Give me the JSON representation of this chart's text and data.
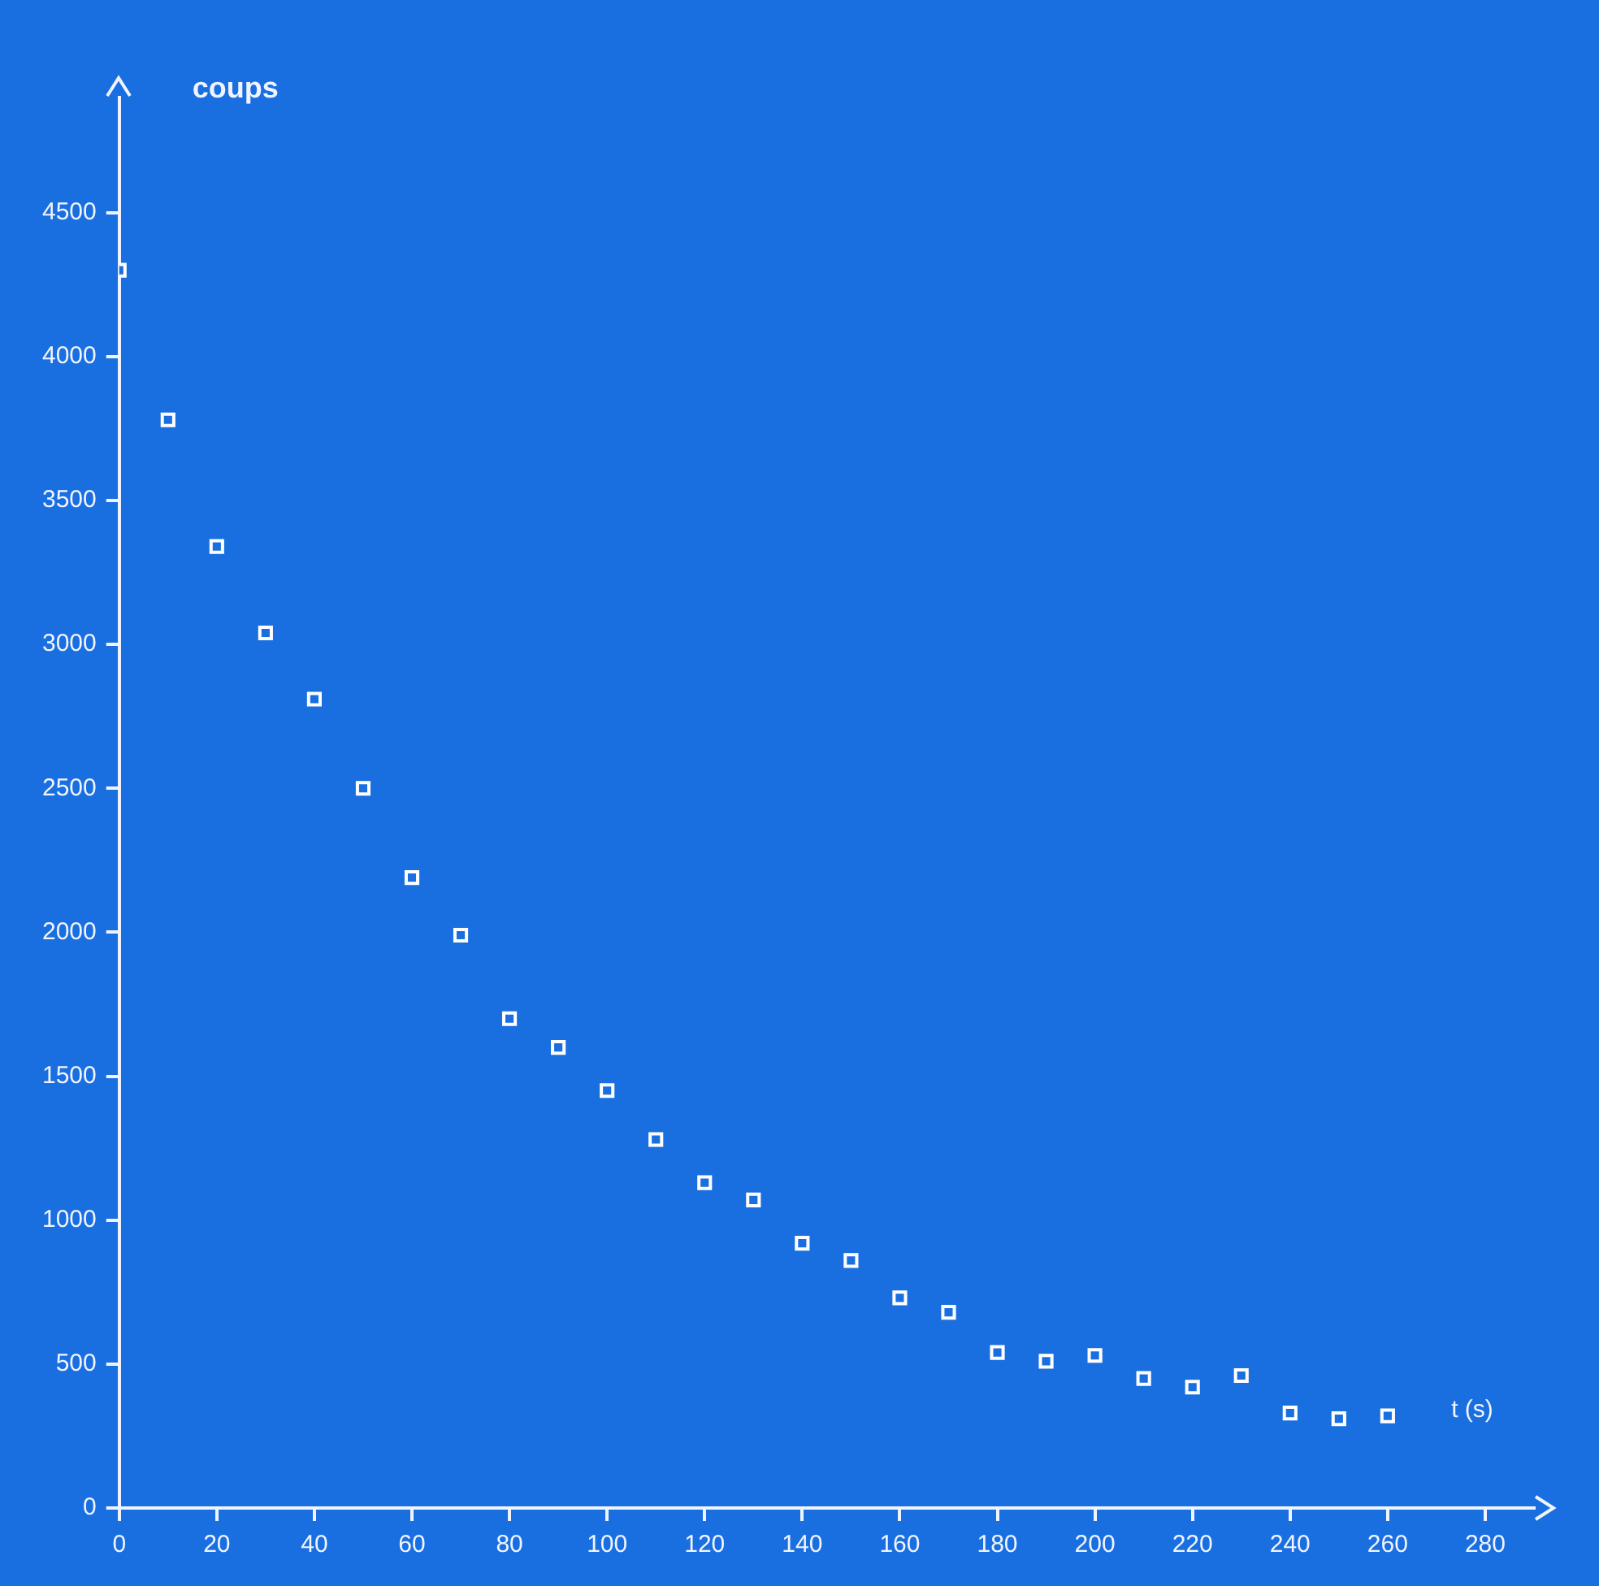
{
  "chart_data": {
    "type": "scatter",
    "xlabel": "t (s)",
    "ylabel": "coups",
    "marker": "square",
    "grid": false,
    "legend": false,
    "x": [
      0,
      10,
      20,
      30,
      40,
      50,
      60,
      70,
      80,
      90,
      100,
      110,
      120,
      130,
      140,
      150,
      160,
      170,
      180,
      190,
      200,
      210,
      220,
      230,
      240,
      250,
      260
    ],
    "series": [
      {
        "color": "#ffffff",
        "values": [
          4300,
          3780,
          3340,
          3040,
          2810,
          2500,
          2190,
          1990,
          1700,
          1600,
          1450,
          1280,
          1130,
          1070,
          920,
          860,
          730,
          680,
          540,
          510,
          530,
          450,
          420,
          460,
          330,
          310,
          320
        ]
      }
    ],
    "xlim": [
      0,
      290
    ],
    "xticks": [
      0,
      20,
      40,
      60,
      80,
      100,
      120,
      140,
      160,
      180,
      200,
      220,
      240,
      260,
      280
    ],
    "ylim": [
      0,
      4900
    ],
    "yticks": [
      0,
      500,
      1000,
      1500,
      2000,
      2500,
      3000,
      3500,
      4000,
      4500
    ]
  }
}
